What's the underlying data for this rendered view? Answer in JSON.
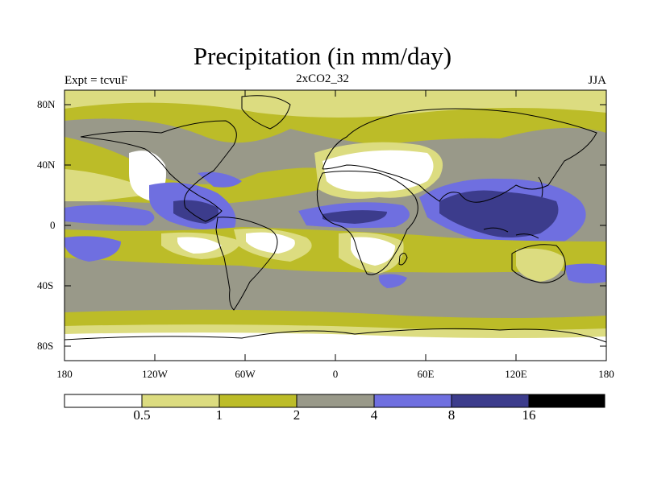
{
  "header": {
    "title": "Precipitation (in mm/day)",
    "experiment": "Expt = tcvuF",
    "subtitle": "2xCO2_32",
    "season": "JJA"
  },
  "axes": {
    "lat_ticks": [
      "80N",
      "40N",
      "0",
      "40S",
      "80S"
    ],
    "lon_ticks": [
      "180",
      "120W",
      "60W",
      "0",
      "60E",
      "120E",
      "180"
    ]
  },
  "colorbar": {
    "levels": [
      "0.5",
      "1",
      "2",
      "4",
      "8",
      "16"
    ],
    "colors": [
      "#ffffff",
      "#dcdc80",
      "#bcbc28",
      "#999989",
      "#6f6fe0",
      "#3c3c8c",
      "#000000"
    ]
  }
}
